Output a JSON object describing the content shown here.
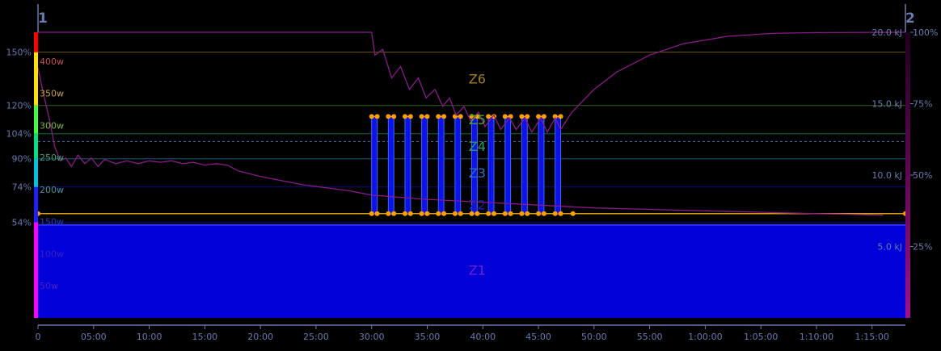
{
  "chart_data": {
    "type": "line",
    "axis_left_number": "1",
    "axis_right_number": "2",
    "x_ticks": [
      "0",
      "05:00",
      "10:00",
      "15:00",
      "20:00",
      "25:00",
      "30:00",
      "35:00",
      "40:00",
      "45:00",
      "50:00",
      "55:00",
      "1:00:00",
      "1:05:00",
      "1:10:00",
      "1:15:00"
    ],
    "x_range_minutes": [
      0,
      78
    ],
    "power_range_w": [
      0,
      445
    ],
    "ftp_w": 276,
    "power_labels": [
      {
        "text": "400w",
        "w": 400,
        "color": "#c0504d"
      },
      {
        "text": "350w",
        "w": 350,
        "color": "#c0a040"
      },
      {
        "text": "300w",
        "w": 300,
        "color": "#7fb040"
      },
      {
        "text": "250w",
        "w": 250,
        "color": "#40a070"
      },
      {
        "text": "200w",
        "w": 200,
        "color": "#4090a0"
      },
      {
        "text": "150w",
        "w": 150,
        "color": "#2040c0"
      },
      {
        "text": "100w",
        "w": 100,
        "color": "#3a20c0"
      },
      {
        "text": "50w",
        "w": 50,
        "color": "#5020c0"
      }
    ],
    "pct_labels": [
      {
        "text": "150%",
        "w": 414
      },
      {
        "text": "120%",
        "w": 331
      },
      {
        "text": "104%",
        "w": 287
      },
      {
        "text": "90%",
        "w": 248
      },
      {
        "text": "74%",
        "w": 204
      },
      {
        "text": "54%",
        "w": 149
      }
    ],
    "zones": [
      {
        "name": "Z1",
        "low": 0,
        "high": 149,
        "color": "#0000d8",
        "text_color": "#7a1fd0"
      },
      {
        "name": "Z2",
        "low": 149,
        "high": 204,
        "color": "#1a1adf",
        "text_color": "#1a20b0"
      },
      {
        "name": "Z3",
        "low": 204,
        "high": 248,
        "color": "#30a0d0",
        "text_color": "#2a70c0"
      },
      {
        "name": "Z4",
        "low": 248,
        "high": 287,
        "color": "#20c080",
        "text_color": "#20a060"
      },
      {
        "name": "Z5",
        "low": 287,
        "high": 331,
        "color": "#60b030",
        "text_color": "#50a030"
      },
      {
        "name": "Z6",
        "low": 331,
        "high": 414,
        "color": "#c0a030",
        "text_color": "#a08020"
      }
    ],
    "zone_bar": [
      {
        "from": 0,
        "to": 149,
        "color": "#ff00ff"
      },
      {
        "from": 149,
        "to": 204,
        "color": "#2020ff"
      },
      {
        "from": 204,
        "to": 248,
        "color": "#00c0e0"
      },
      {
        "from": 248,
        "to": 287,
        "color": "#00e080"
      },
      {
        "from": 287,
        "to": 331,
        "color": "#40ff40"
      },
      {
        "from": 331,
        "to": 414,
        "color": "#ffe000"
      },
      {
        "from": 414,
        "to": 445,
        "color": "#ff0000"
      }
    ],
    "workout": {
      "base_w": 160,
      "baseline_from_min": 0,
      "baseline_to_min": 78,
      "interval_w": 310,
      "intervals_start_min": [
        30,
        31.5,
        33,
        34.5,
        36,
        37.5,
        39,
        40.5,
        42,
        43.5,
        45,
        46.5
      ],
      "interval_duration_min": 0.5,
      "end_marker_min": 48.1
    },
    "energy": {
      "ticks": [
        {
          "text": "20.0 kJ",
          "v": 20
        },
        {
          "text": "15.0 kJ",
          "v": 15
        },
        {
          "text": "10.0 kJ",
          "v": 10
        },
        {
          "text": "5.0 kJ",
          "v": 5
        }
      ],
      "range": [
        0,
        20
      ],
      "series_color": "#8a1a8a",
      "decay": [
        [
          0,
          17.5
        ],
        [
          0.4,
          16
        ],
        [
          1,
          14
        ],
        [
          1.5,
          12
        ],
        [
          2,
          11
        ],
        [
          2.5,
          11.2
        ],
        [
          3,
          10.6
        ],
        [
          3.6,
          11.4
        ],
        [
          4.2,
          10.8
        ],
        [
          4.8,
          11.2
        ],
        [
          5.4,
          10.6
        ],
        [
          6,
          11.1
        ],
        [
          7,
          10.8
        ],
        [
          8,
          11
        ],
        [
          9,
          10.8
        ],
        [
          10,
          11
        ],
        [
          11,
          10.9
        ],
        [
          12,
          11
        ],
        [
          13,
          10.8
        ],
        [
          14,
          10.9
        ],
        [
          15,
          10.7
        ],
        [
          16,
          10.8
        ],
        [
          17,
          10.7
        ],
        [
          18,
          10.3
        ],
        [
          20,
          9.9
        ],
        [
          22,
          9.6
        ],
        [
          24,
          9.3
        ],
        [
          26,
          9.1
        ],
        [
          28,
          8.9
        ],
        [
          30,
          8.6
        ],
        [
          35,
          8.3
        ],
        [
          40,
          8.1
        ],
        [
          45,
          7.9
        ],
        [
          50,
          7.7
        ],
        [
          55,
          7.6
        ],
        [
          60,
          7.5
        ],
        [
          65,
          7.4
        ],
        [
          70,
          7.3
        ],
        [
          76,
          7.2
        ]
      ],
      "percent_ticks": [
        {
          "text": "100%",
          "v": 100
        },
        {
          "text": "75%",
          "v": 75
        },
        {
          "text": "50%",
          "v": 50
        },
        {
          "text": "25%",
          "v": 25
        }
      ],
      "wprime": [
        [
          0,
          100
        ],
        [
          30,
          100
        ],
        [
          30.3,
          92
        ],
        [
          31,
          94
        ],
        [
          31.8,
          84
        ],
        [
          32.6,
          88
        ],
        [
          33.4,
          80
        ],
        [
          34.2,
          84
        ],
        [
          34.9,
          77
        ],
        [
          35.7,
          80
        ],
        [
          36.4,
          74
        ],
        [
          37,
          77
        ],
        [
          37.6,
          71
        ],
        [
          38.3,
          74
        ],
        [
          38.9,
          69
        ],
        [
          39.6,
          72
        ],
        [
          40.2,
          67
        ],
        [
          41,
          71
        ],
        [
          41.6,
          66
        ],
        [
          42.4,
          70
        ],
        [
          43,
          66
        ],
        [
          43.8,
          70
        ],
        [
          44.4,
          65
        ],
        [
          45.2,
          70
        ],
        [
          45.8,
          65
        ],
        [
          46.5,
          70
        ],
        [
          47,
          66
        ],
        [
          48,
          72
        ],
        [
          50,
          80
        ],
        [
          52,
          86
        ],
        [
          55,
          92
        ],
        [
          58,
          96
        ],
        [
          62,
          98.6
        ],
        [
          66,
          99.6
        ],
        [
          70,
          99.9
        ],
        [
          78,
          100
        ]
      ]
    }
  }
}
